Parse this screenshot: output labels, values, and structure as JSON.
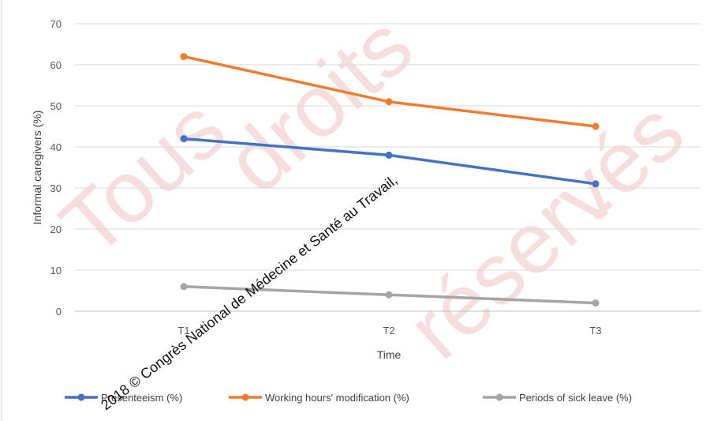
{
  "chart_data": {
    "type": "line",
    "title": "",
    "xlabel": "Time",
    "ylabel": "Informal caregivers (%)",
    "categories": [
      "T1",
      "T2",
      "T3"
    ],
    "ylim": [
      0,
      70
    ],
    "yticks": [
      0,
      10,
      20,
      30,
      40,
      50,
      60,
      70
    ],
    "grid": true,
    "legend_position": "bottom",
    "series": [
      {
        "name": "Presenteeism (%)",
        "values": [
          42,
          38,
          31
        ],
        "color": "#4472c4"
      },
      {
        "name": "Working hours' modification (%)",
        "values": [
          62,
          51,
          45
        ],
        "color": "#ed7d31"
      },
      {
        "name": "Periods of sick leave (%)",
        "values": [
          6,
          4,
          2
        ],
        "color": "#a5a5a5"
      }
    ]
  },
  "watermark": {
    "copyright_text": "2018 © Congrès National de Médecine et Santé au Travail,",
    "background_text": "Tous droits réservés - Toute reproduction"
  }
}
